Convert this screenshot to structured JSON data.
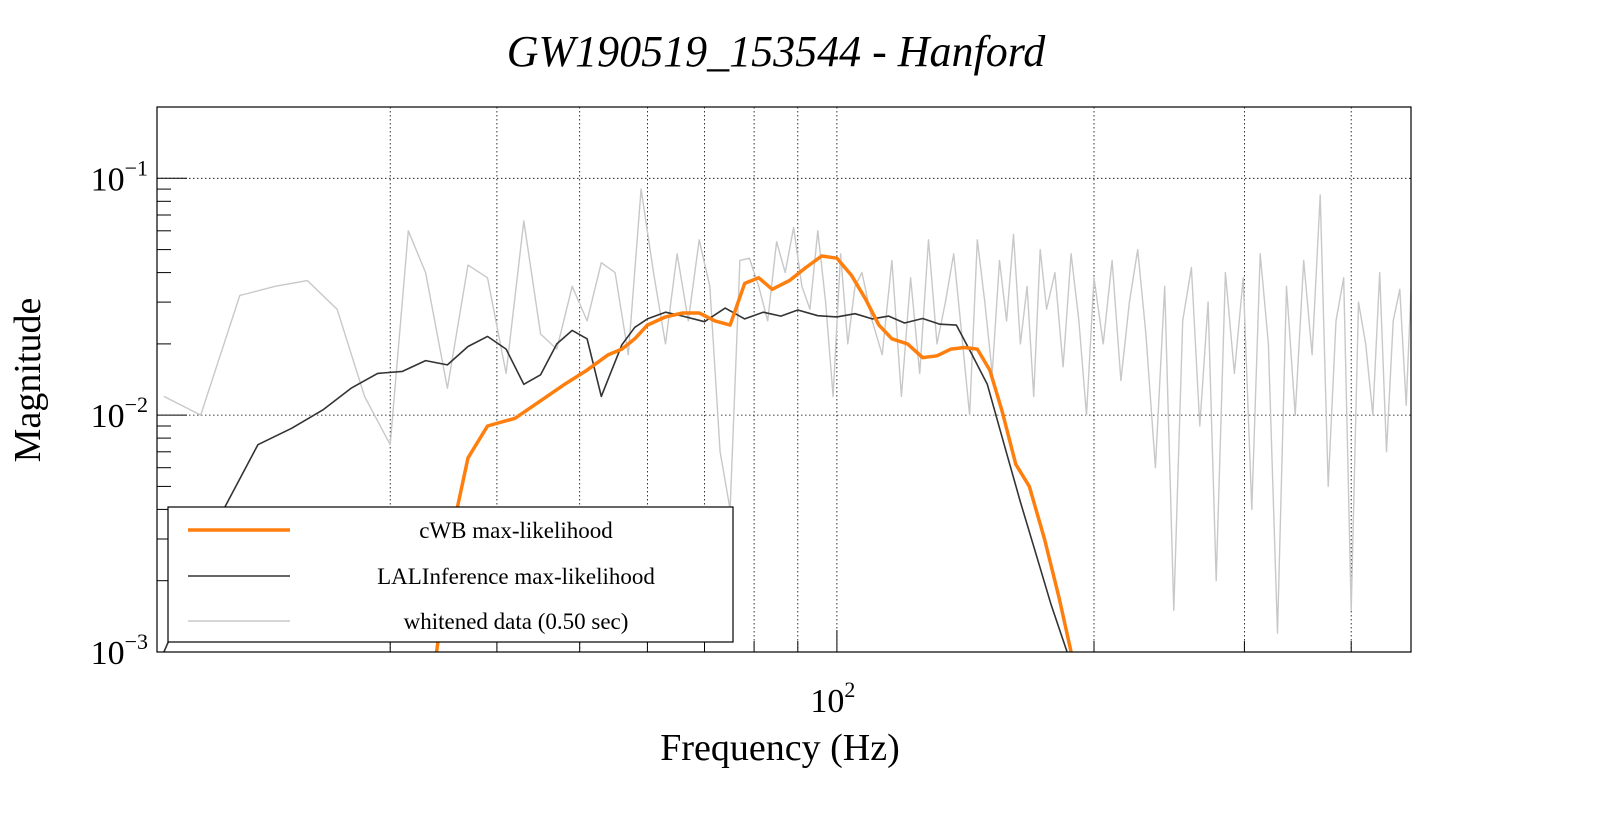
{
  "chart_data": {
    "type": "line",
    "title": "GW190519_153544 - Hanford",
    "xlabel": "Frequency (Hz)",
    "ylabel": "Magnitude",
    "xscale": "log",
    "yscale": "log",
    "xlim": [
      16,
      470
    ],
    "ylim": [
      0.001,
      0.2
    ],
    "x_major_ticks": [
      {
        "value": 100,
        "base": "10",
        "exp": "2"
      }
    ],
    "x_grid": [
      30,
      40,
      50,
      60,
      70,
      80,
      90,
      100,
      200,
      300,
      400
    ],
    "y_major_ticks": [
      {
        "value": 0.1,
        "base": "10",
        "exp": "−1"
      },
      {
        "value": 0.01,
        "base": "10",
        "exp": "−2"
      },
      {
        "value": 0.001,
        "base": "10",
        "exp": "−3"
      }
    ],
    "grid": true,
    "legend_position": "bottom-left",
    "series": [
      {
        "name": "cWB max-likelihood",
        "color": "#ff7f0e",
        "width": 3.5,
        "x": [
          34,
          35.5,
          37,
          39,
          42,
          45,
          48,
          51,
          54,
          56,
          58,
          60,
          63,
          66,
          69,
          72,
          75,
          78,
          81,
          84,
          88,
          92,
          96,
          100,
          104,
          108,
          112,
          116,
          121,
          126,
          131,
          136,
          141,
          146,
          151,
          156,
          162,
          168,
          175,
          182,
          188
        ],
        "y": [
          0.001,
          0.0033,
          0.0066,
          0.009,
          0.0097,
          0.0115,
          0.0135,
          0.0155,
          0.018,
          0.019,
          0.021,
          0.024,
          0.026,
          0.027,
          0.027,
          0.025,
          0.024,
          0.036,
          0.038,
          0.034,
          0.037,
          0.042,
          0.047,
          0.046,
          0.039,
          0.031,
          0.024,
          0.021,
          0.02,
          0.0175,
          0.0178,
          0.019,
          0.0193,
          0.019,
          0.0155,
          0.0105,
          0.0062,
          0.005,
          0.003,
          0.0017,
          0.001
        ]
      },
      {
        "name": "LALInference max-likelihood",
        "color": "#333333",
        "width": 1.6,
        "x": [
          16.3,
          17.5,
          19,
          21,
          23,
          25,
          27,
          29,
          31,
          33,
          35,
          37,
          39,
          41,
          43,
          45,
          47,
          49,
          51,
          53,
          56,
          58,
          60,
          63,
          66,
          70,
          74,
          78,
          82,
          86,
          90,
          95,
          100,
          105,
          110,
          115,
          120,
          126,
          132,
          138,
          144,
          150,
          157,
          164,
          171,
          178,
          186
        ],
        "y": [
          0.001,
          0.0018,
          0.0038,
          0.0075,
          0.0088,
          0.0105,
          0.013,
          0.015,
          0.0153,
          0.017,
          0.0163,
          0.0195,
          0.0215,
          0.019,
          0.0135,
          0.0148,
          0.02,
          0.0228,
          0.021,
          0.012,
          0.0198,
          0.0235,
          0.0255,
          0.0272,
          0.0262,
          0.0248,
          0.0283,
          0.0255,
          0.0272,
          0.0262,
          0.0278,
          0.0263,
          0.026,
          0.0268,
          0.0255,
          0.0262,
          0.0245,
          0.0256,
          0.0242,
          0.024,
          0.018,
          0.0135,
          0.0075,
          0.0043,
          0.0026,
          0.0016,
          0.001
        ]
      },
      {
        "name": "whitened data (0.50 sec)",
        "color": "#c8c8c8",
        "width": 1.4,
        "x": [
          16.3,
          18,
          20,
          22,
          24,
          26,
          28,
          30,
          31.5,
          33,
          35,
          37,
          39,
          41,
          43,
          45,
          47,
          49,
          51,
          53,
          55,
          57,
          59,
          61,
          63,
          65,
          67,
          69,
          71,
          73,
          75,
          77,
          79,
          81,
          83,
          85,
          87,
          89,
          91,
          93,
          95,
          97,
          99,
          101,
          103,
          105,
          107,
          110,
          113,
          116,
          119,
          122,
          125,
          128,
          131,
          134,
          137,
          140,
          143,
          146,
          149,
          152,
          155,
          158,
          161,
          164,
          167,
          170,
          173,
          176,
          180,
          184,
          188,
          192,
          196,
          200,
          205,
          210,
          215,
          220,
          225,
          230,
          236,
          242,
          248,
          254,
          260,
          266,
          272,
          278,
          285,
          292,
          299,
          306,
          313,
          320,
          328,
          336,
          344,
          352,
          360,
          368,
          376,
          384,
          392,
          400,
          408,
          416,
          424,
          432,
          440,
          448,
          456,
          464,
          470
        ],
        "y": [
          0.012,
          0.01,
          0.032,
          0.035,
          0.037,
          0.028,
          0.012,
          0.0075,
          0.06,
          0.04,
          0.013,
          0.043,
          0.038,
          0.015,
          0.066,
          0.022,
          0.019,
          0.035,
          0.025,
          0.044,
          0.04,
          0.018,
          0.09,
          0.04,
          0.02,
          0.048,
          0.025,
          0.055,
          0.035,
          0.007,
          0.004,
          0.045,
          0.046,
          0.035,
          0.025,
          0.054,
          0.04,
          0.062,
          0.035,
          0.028,
          0.06,
          0.03,
          0.012,
          0.048,
          0.02,
          0.035,
          0.04,
          0.025,
          0.018,
          0.045,
          0.012,
          0.038,
          0.015,
          0.055,
          0.02,
          0.03,
          0.048,
          0.022,
          0.01,
          0.055,
          0.03,
          0.015,
          0.045,
          0.025,
          0.058,
          0.02,
          0.035,
          0.012,
          0.05,
          0.028,
          0.04,
          0.016,
          0.048,
          0.025,
          0.01,
          0.038,
          0.02,
          0.045,
          0.014,
          0.03,
          0.05,
          0.022,
          0.006,
          0.035,
          0.0015,
          0.025,
          0.042,
          0.009,
          0.03,
          0.002,
          0.04,
          0.015,
          0.038,
          0.004,
          0.048,
          0.02,
          0.0012,
          0.035,
          0.01,
          0.045,
          0.018,
          0.085,
          0.005,
          0.025,
          0.038,
          0.0015,
          0.03,
          0.02,
          0.01,
          0.04,
          0.007,
          0.025,
          0.034,
          0.011,
          0.034
        ]
      }
    ]
  }
}
